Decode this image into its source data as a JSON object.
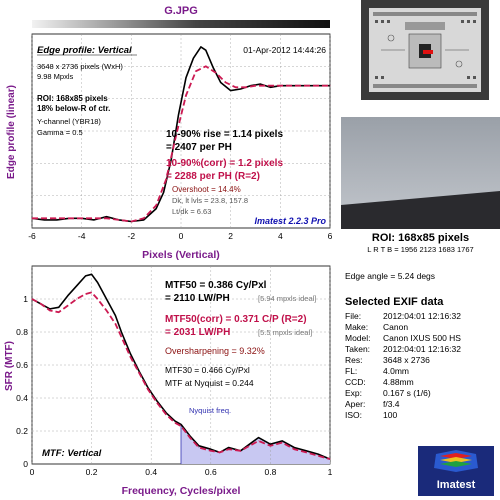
{
  "header": {
    "filename": "G.JPG"
  },
  "colors": {
    "purple": "#7a1a8a",
    "crimson": "#c0104a",
    "blue": "#1010b0",
    "measured": "#000000",
    "corrected": "#cc1a52",
    "nyquist_fill": "#c8c8f2"
  },
  "edge_panel": {
    "title": "Edge profile: Vertical",
    "date": "01-Apr-2012 14:44:26",
    "info": [
      "3648 x 2736 pixels (WxH)",
      "9.98 Mpxls"
    ],
    "roi_bold": [
      "ROI: 168x85 pixels",
      "18% below-R of ctr."
    ],
    "info2": [
      "Y-channel (YBR18)",
      "Gamma = 0.5"
    ],
    "rise1": "10-90% rise = 1.14 pixels",
    "rise1b": "= 2407 per PH",
    "rise2": "10-90%(corr) = 1.2 pixels",
    "rise2b": "= 2288 per PH  (R=2)",
    "overshoot": "Overshoot = 14.4%",
    "dk": "Dk, lt lvls = 23.8, 157.8",
    "ltdk": "Lt/dk = 6.63",
    "version": "Imatest 2.2.3 Pro"
  },
  "mtf_panel": {
    "title": "MTF: Vertical",
    "mtf50a": "MTF50 = 0.386 Cy/Pxl",
    "mtf50b": "= 2110 LW/PH",
    "mtf50_ideal": "[5.94 mpxls ideal]",
    "mtf50c_a": "MTF50(corr) = 0.371 C/P  (R=2)",
    "mtf50c_b": "= 2031 LW/PH",
    "mtf50c_ideal": "[5.5 mpxls ideal]",
    "oversharpening": "Oversharpening = 9.32%",
    "mtf30": "MTF30 = 0.466 Cy/Pxl",
    "nyq_mtf": "MTF at Nyquist = 0.244",
    "nyquist_label": "Nyquist freq."
  },
  "right_panel": {
    "roi_title": "ROI: 168x85 pixels",
    "lrtb": "L R  T B = 1956 2123  1683 1767",
    "edge_angle": "Edge angle = 5.24 degs",
    "exif_title": "Selected EXIF data",
    "exif": [
      {
        "key": "File:",
        "value": "2012:04:01 12:16:32"
      },
      {
        "key": "Make:",
        "value": "Canon"
      },
      {
        "key": "Model:",
        "value": "Canon IXUS 500 HS"
      },
      {
        "key": "Taken:",
        "value": "2012:04:01 12:16:32"
      },
      {
        "key": "Res:",
        "value": "3648 x 2736"
      },
      {
        "key": "FL:",
        "value": "4.0mm"
      },
      {
        "key": "CCD:",
        "value": "4.88mm"
      },
      {
        "key": "Exp:",
        "value": "0.167 s  (1/6)"
      },
      {
        "key": "Aper:",
        "value": "f/3.4"
      },
      {
        "key": "ISO:",
        "value": "100"
      }
    ],
    "logo_text": "Imatest"
  },
  "chart_data": [
    {
      "type": "line",
      "xlabel": "Pixels (Vertical)",
      "ylabel": "Edge profile (linear)",
      "xlim": [
        -6,
        6
      ],
      "ylim": [
        0,
        1.2
      ],
      "xticks": [
        -6,
        -4,
        -2,
        0,
        2,
        4,
        6
      ],
      "grid": true,
      "series": [
        {
          "role": "measured",
          "x": [
            -6,
            -5.5,
            -5,
            -4.5,
            -4,
            -3.5,
            -3,
            -2.5,
            -2,
            -1.5,
            -1,
            -0.7,
            -0.4,
            -0.1,
            0.2,
            0.5,
            0.8,
            1,
            1.3,
            1.6,
            2,
            2.4,
            2.8,
            3.2,
            3.6,
            4,
            4.5,
            5,
            5.5,
            6
          ],
          "y": [
            0.06,
            0.05,
            0.05,
            0.06,
            0.06,
            0.05,
            0.07,
            0.05,
            0.04,
            0.05,
            0.12,
            0.22,
            0.42,
            0.7,
            0.93,
            1.05,
            1.12,
            1.1,
            0.99,
            0.9,
            0.85,
            0.86,
            0.88,
            0.89,
            0.87,
            0.88,
            0.88,
            0.88,
            0.88,
            0.88
          ]
        },
        {
          "role": "corrected",
          "x": [
            -6,
            -5,
            -4,
            -3,
            -2.5,
            -2,
            -1.5,
            -1,
            -0.6,
            -0.2,
            0.2,
            0.6,
            1,
            1.4,
            1.8,
            2.2,
            2.6,
            3,
            3.5,
            4,
            5,
            6
          ],
          "y": [
            0.06,
            0.06,
            0.06,
            0.06,
            0.05,
            0.04,
            0.06,
            0.14,
            0.3,
            0.57,
            0.82,
            0.97,
            1.0,
            0.96,
            0.9,
            0.87,
            0.87,
            0.88,
            0.88,
            0.88,
            0.88,
            0.88
          ]
        }
      ]
    },
    {
      "type": "line",
      "xlabel": "Frequency, Cycles/pixel",
      "ylabel": "SFR (MTF)",
      "xlim": [
        0,
        1
      ],
      "ylim": [
        0,
        1.2
      ],
      "xticks": [
        0,
        0.2,
        0.4,
        0.6,
        0.8,
        1
      ],
      "yticks": [
        0,
        0.2,
        0.4,
        0.6,
        0.8,
        1
      ],
      "nyquist": 0.5,
      "grid": true,
      "series": [
        {
          "role": "measured",
          "x": [
            0,
            0.03,
            0.06,
            0.09,
            0.12,
            0.15,
            0.18,
            0.2,
            0.22,
            0.25,
            0.28,
            0.3,
            0.33,
            0.36,
            0.39,
            0.42,
            0.45,
            0.48,
            0.5,
            0.53,
            0.56,
            0.6,
            0.63,
            0.66,
            0.7,
            0.73,
            0.76,
            0.8,
            0.84,
            0.88,
            0.92,
            0.96,
            1.0
          ],
          "y": [
            1.0,
            0.97,
            0.94,
            0.95,
            1.02,
            1.08,
            1.14,
            1.15,
            1.1,
            1.0,
            0.9,
            0.8,
            0.67,
            0.56,
            0.46,
            0.38,
            0.31,
            0.26,
            0.24,
            0.17,
            0.11,
            0.09,
            0.07,
            0.1,
            0.08,
            0.12,
            0.16,
            0.12,
            0.14,
            0.1,
            0.08,
            0.06,
            0.03
          ]
        },
        {
          "role": "corrected",
          "x": [
            0,
            0.03,
            0.06,
            0.09,
            0.12,
            0.15,
            0.18,
            0.2,
            0.22,
            0.25,
            0.28,
            0.3,
            0.33,
            0.36,
            0.39,
            0.42,
            0.45,
            0.48,
            0.5,
            0.53,
            0.56,
            0.6,
            0.63,
            0.66,
            0.7,
            0.73,
            0.76,
            0.8,
            0.84,
            0.88,
            0.92,
            0.96,
            1.0
          ],
          "y": [
            1.0,
            0.97,
            0.93,
            0.92,
            0.96,
            1.0,
            1.03,
            1.04,
            1.0,
            0.93,
            0.85,
            0.77,
            0.65,
            0.55,
            0.45,
            0.37,
            0.3,
            0.25,
            0.23,
            0.16,
            0.1,
            0.08,
            0.07,
            0.09,
            0.08,
            0.11,
            0.14,
            0.11,
            0.13,
            0.09,
            0.07,
            0.05,
            0.03
          ]
        }
      ]
    }
  ]
}
